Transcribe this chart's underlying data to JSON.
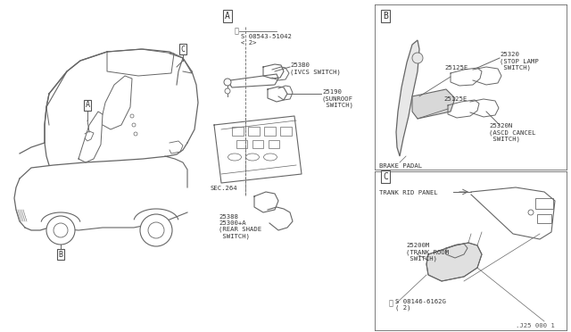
{
  "bg_color": "#ffffff",
  "line_color": "#666666",
  "font_size_small": 5.5,
  "font_size_mono": 5.8,
  "diagram_parts": {
    "screw_A": "S 08543-51042\n< 2>",
    "part_253B0": "253B0\n(IVCS SWITCH)",
    "part_25190": "25190\n(SUNROOF\n SWITCH)",
    "part_25388": "25388\n25300+A\n(REAR SHADE\n SWITCH)",
    "sec264": "SEC.264",
    "part_25320": "25320\n(STOP LAMP\n SWITCH)",
    "part_25125E_top": "25125E",
    "part_25125E_bot": "25125E",
    "brake_padal": "BRAKE PADAL",
    "part_25320N": "25320N\n(ASCD CANCEL\n SWITCH)",
    "trunk_lid": "TRANK RID PANEL",
    "part_25200M": "25200M\n(TRANK ROOM\n SWITCH)",
    "screw_C": "S 08146-6162G\n( 2)",
    "part_num": ".J25 000 1"
  }
}
